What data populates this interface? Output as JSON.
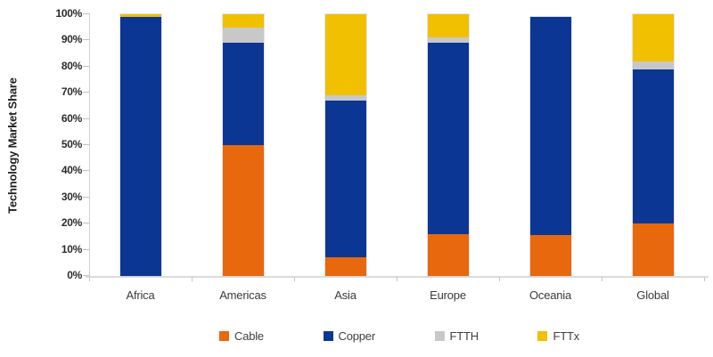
{
  "chart_data": {
    "type": "bar",
    "stacked": true,
    "title": "",
    "xlabel": "",
    "ylabel": "Technology Market Share",
    "ylim": [
      0,
      100
    ],
    "y_tick_step": 10,
    "y_tick_labels": [
      "0%",
      "10%",
      "20%",
      "30%",
      "40%",
      "50%",
      "60%",
      "70%",
      "80%",
      "90%",
      "100%"
    ],
    "grid": false,
    "legend_position": "bottom",
    "categories": [
      "Africa",
      "Americas",
      "Asia",
      "Europe",
      "Oceania",
      "Global"
    ],
    "series": [
      {
        "name": "Cable",
        "color": "#E8680D",
        "values": [
          0,
          50,
          7,
          16,
          15.5,
          20
        ]
      },
      {
        "name": "Copper",
        "color": "#0B3694",
        "values": [
          99,
          39,
          60,
          73,
          83.5,
          59
        ]
      },
      {
        "name": "FTTH",
        "color": "#C8C8C8",
        "values": [
          0,
          6,
          2,
          2,
          0,
          3
        ]
      },
      {
        "name": "FTTx",
        "color": "#F0C001",
        "values": [
          1,
          5,
          31,
          9,
          0,
          18
        ]
      }
    ]
  }
}
